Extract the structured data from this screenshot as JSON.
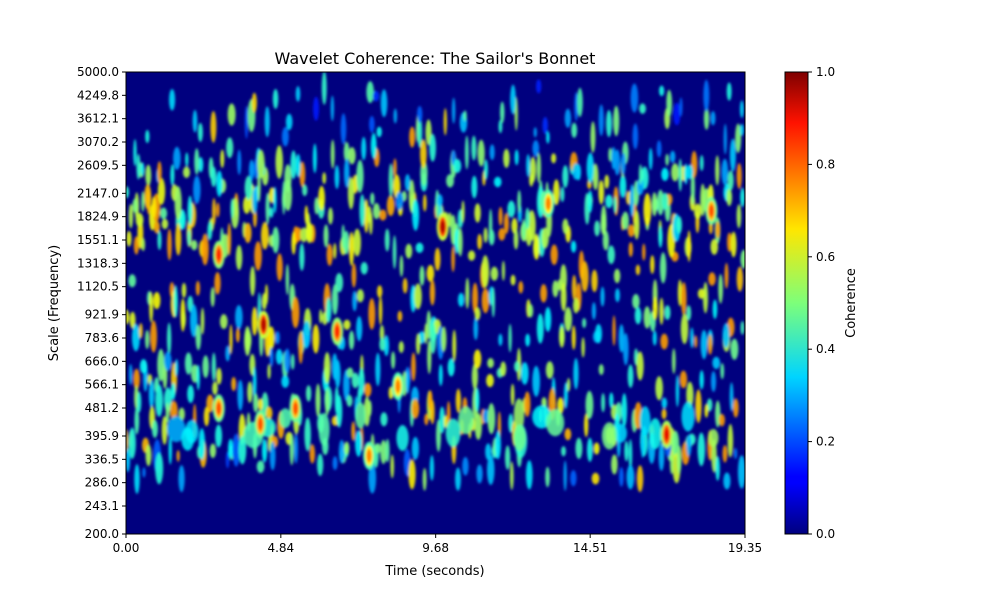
{
  "chart_data": {
    "type": "heatmap",
    "title": "Wavelet Coherence: The Sailor's Bonnet",
    "xlabel": "Time (seconds)",
    "ylabel": "Scale (Frequency)",
    "xlim": [
      0,
      19.35
    ],
    "ylim": [
      200,
      5000
    ],
    "y_scale": "log",
    "x_ticks": [
      0,
      4.84,
      9.68,
      14.51,
      19.35
    ],
    "x_tick_labels": [
      "0.00",
      "4.84",
      "9.68",
      "14.51",
      "19.35"
    ],
    "y_ticks": [
      200,
      243.1,
      286,
      336.5,
      395.9,
      481.2,
      566.1,
      666,
      783.6,
      921.9,
      1120.5,
      1318.3,
      1551.1,
      1824.9,
      2147,
      2609.5,
      3070.2,
      3612.1,
      4249.8,
      5000
    ],
    "y_tick_labels": [
      "200.0",
      "243.1",
      "286.0",
      "336.5",
      "395.9",
      "481.2",
      "566.1",
      "666.0",
      "783.6",
      "921.9",
      "1120.5",
      "1318.3",
      "1551.1",
      "1824.9",
      "2147.0",
      "2609.5",
      "3070.2",
      "3612.1",
      "4249.8",
      "5000.0"
    ],
    "colormap": "jet",
    "colorbar": {
      "label": "Coherence",
      "range": [
        0,
        1
      ],
      "ticks": [
        0,
        0.2,
        0.4,
        0.6,
        0.8,
        1
      ],
      "tick_labels": [
        "0.0",
        "0.2",
        "0.4",
        "0.6",
        "0.8",
        "1.0"
      ]
    },
    "hotspots": [
      {
        "t": 4.3,
        "scale": 860,
        "value": 0.95
      },
      {
        "t": 9.9,
        "scale": 1700,
        "value": 0.95
      },
      {
        "t": 16.9,
        "scale": 400,
        "value": 0.9
      },
      {
        "t": 2.9,
        "scale": 1400,
        "value": 0.85
      },
      {
        "t": 6.6,
        "scale": 820,
        "value": 0.85
      },
      {
        "t": 18.3,
        "scale": 1900,
        "value": 0.8
      },
      {
        "t": 8.5,
        "scale": 560,
        "value": 0.75
      },
      {
        "t": 13.2,
        "scale": 2000,
        "value": 0.75
      },
      {
        "t": 4.2,
        "scale": 430,
        "value": 0.8
      },
      {
        "t": 5.3,
        "scale": 480,
        "value": 0.8
      },
      {
        "t": 2.9,
        "scale": 480,
        "value": 0.8
      },
      {
        "t": 7.6,
        "scale": 345,
        "value": 0.75
      }
    ]
  }
}
